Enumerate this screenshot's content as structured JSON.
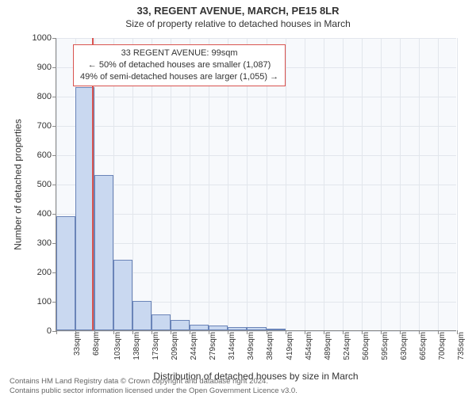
{
  "title": "33, REGENT AVENUE, MARCH, PE15 8LR",
  "subtitle": "Size of property relative to detached houses in March",
  "y_axis_title": "Number of detached properties",
  "x_axis_title": "Distribution of detached houses by size in March",
  "footer_line1": "Contains HM Land Registry data © Crown copyright and database right 2024.",
  "footer_line2": "Contains public sector information licensed under the Open Government Licence v3.0.",
  "infobox": {
    "line1": "33 REGENT AVENUE: 99sqm",
    "line2": "← 50% of detached houses are smaller (1,087)",
    "line3": "49% of semi-detached houses are larger (1,055) →"
  },
  "chart": {
    "type": "histogram",
    "plot_background": "#f7f9fc",
    "grid_color": "#e2e6ec",
    "axis_color": "#888888",
    "bar_fill": "#c9d8f0",
    "bar_stroke": "#6a84b8",
    "marker_color": "#d9534f",
    "marker_x_value": 99,
    "y": {
      "min": 0,
      "max": 1000,
      "ticks": [
        0,
        100,
        200,
        300,
        400,
        500,
        600,
        700,
        800,
        900,
        1000
      ]
    },
    "x": {
      "min": 33,
      "bin_width": 35.12,
      "bin_count": 21,
      "tick_labels": [
        "33sqm",
        "68sqm",
        "103sqm",
        "138sqm",
        "173sqm",
        "209sqm",
        "244sqm",
        "279sqm",
        "314sqm",
        "349sqm",
        "384sqm",
        "419sqm",
        "454sqm",
        "489sqm",
        "524sqm",
        "560sqm",
        "595sqm",
        "630sqm",
        "665sqm",
        "700sqm",
        "735sqm"
      ]
    },
    "values": [
      390,
      830,
      530,
      240,
      100,
      55,
      35,
      20,
      15,
      10,
      10,
      5,
      0,
      0,
      0,
      0,
      0,
      0,
      0,
      0,
      0
    ],
    "title_fontsize": 13,
    "subtitle_fontsize": 12,
    "axis_label_fontsize": 12,
    "tick_fontsize": 11
  }
}
